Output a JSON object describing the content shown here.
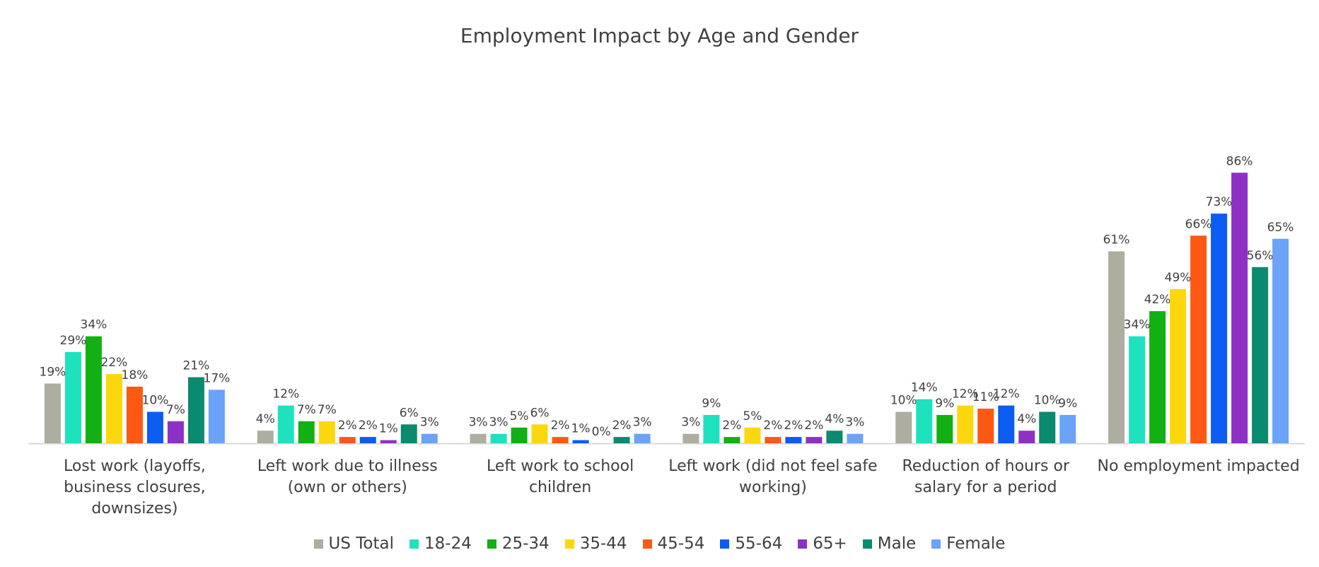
{
  "chart_data": {
    "type": "bar",
    "title": "Employment Impact by Age and Gender",
    "xlabel": "",
    "ylabel": "",
    "ylim": [
      0,
      90
    ],
    "grid": false,
    "legend_position": "bottom",
    "categories": [
      [
        "Lost work (layoffs,",
        "business closures,",
        "downsizes)"
      ],
      [
        "Left work due to illness",
        "(own or others)"
      ],
      [
        "Left work to school",
        "children"
      ],
      [
        "Left work (did not feel safe",
        "working)"
      ],
      [
        "Reduction of hours or",
        "salary for a period"
      ],
      [
        "No employment impacted"
      ]
    ],
    "series": [
      {
        "name": "US Total",
        "color": "#adada0",
        "values": [
          19,
          4,
          3,
          3,
          10,
          61
        ]
      },
      {
        "name": "18-24",
        "color": "#1de2bd",
        "values": [
          29,
          12,
          3,
          9,
          14,
          34
        ]
      },
      {
        "name": "25-34",
        "color": "#12b012",
        "values": [
          34,
          7,
          5,
          2,
          9,
          42
        ]
      },
      {
        "name": "35-44",
        "color": "#fdd70d",
        "values": [
          22,
          7,
          6,
          5,
          12,
          49
        ]
      },
      {
        "name": "45-54",
        "color": "#fd5814",
        "values": [
          18,
          2,
          2,
          2,
          11,
          66
        ]
      },
      {
        "name": "55-64",
        "color": "#0b5cf0",
        "values": [
          10,
          2,
          1,
          2,
          12,
          73
        ]
      },
      {
        "name": "65+",
        "color": "#8f30c4",
        "values": [
          7,
          1,
          0,
          2,
          4,
          86
        ]
      },
      {
        "name": "Male",
        "color": "#0a8a6e",
        "values": [
          21,
          6,
          2,
          4,
          10,
          56
        ]
      },
      {
        "name": "Female",
        "color": "#6aa3f7",
        "values": [
          17,
          3,
          3,
          3,
          9,
          65
        ]
      }
    ],
    "value_suffix": "%"
  }
}
